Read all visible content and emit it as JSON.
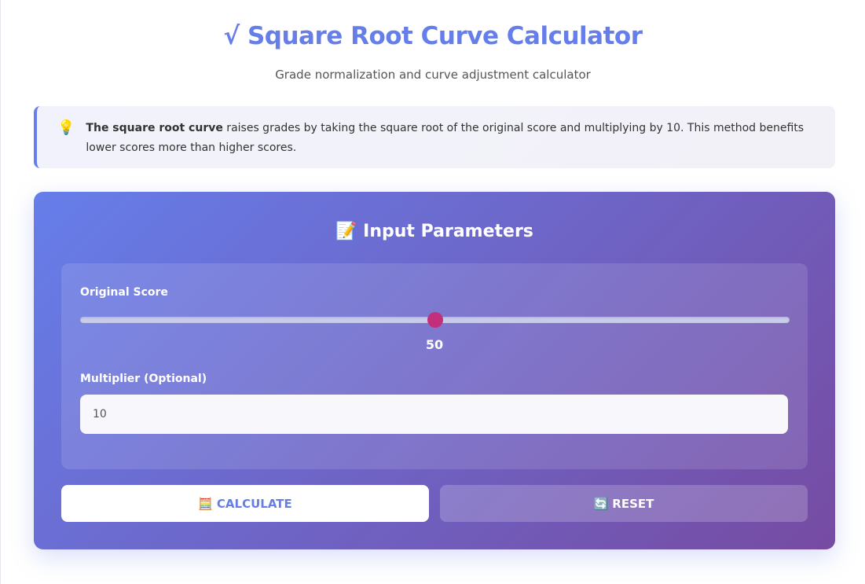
{
  "header": {
    "title": "√ Square Root Curve Calculator",
    "subtitle": "Grade normalization and curve adjustment calculator"
  },
  "info": {
    "icon": "lightbulb-icon",
    "icon_glyph": "💡",
    "bold": "The square root curve",
    "text": " raises grades by taking the square root of the original score and multiplying by 10. This method benefits lower scores more than higher scores."
  },
  "panel": {
    "icon_glyph": "📝",
    "title": "Input Parameters",
    "score": {
      "label": "Original Score",
      "value": "50",
      "min": 0,
      "max": 100
    },
    "multiplier": {
      "label": "Multiplier (Optional)",
      "value": "10"
    },
    "calculate": {
      "icon_glyph": "🧮",
      "label": "CALCULATE"
    },
    "reset": {
      "icon_glyph": "🔄",
      "label": "RESET"
    }
  },
  "colors": {
    "accent": "#667eea",
    "gradient_end": "#764ba2",
    "thumb": "#c2307c"
  }
}
